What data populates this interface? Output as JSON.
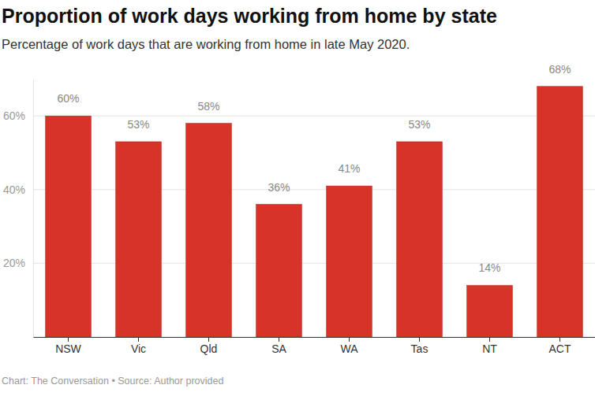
{
  "chart_data": {
    "type": "bar",
    "title": "Proportion of work days working from home by state",
    "subtitle": "Percentage of work days that are working from home in late May 2020.",
    "source": "Chart: The Conversation • Source: Author provided",
    "categories": [
      "NSW",
      "Vic",
      "Qld",
      "SA",
      "WA",
      "Tas",
      "NT",
      "ACT"
    ],
    "values": [
      60,
      53,
      58,
      36,
      41,
      53,
      14,
      68
    ],
    "value_labels": [
      "60%",
      "53%",
      "58%",
      "36%",
      "41%",
      "53%",
      "14%",
      "68%"
    ],
    "color": "#d73328",
    "ylim": [
      0,
      70
    ],
    "yticks": [
      {
        "value": 20,
        "label": "20%"
      },
      {
        "value": 40,
        "label": "40%"
      },
      {
        "value": 60,
        "label": "60%"
      }
    ],
    "grid": true,
    "data_labels": true
  }
}
